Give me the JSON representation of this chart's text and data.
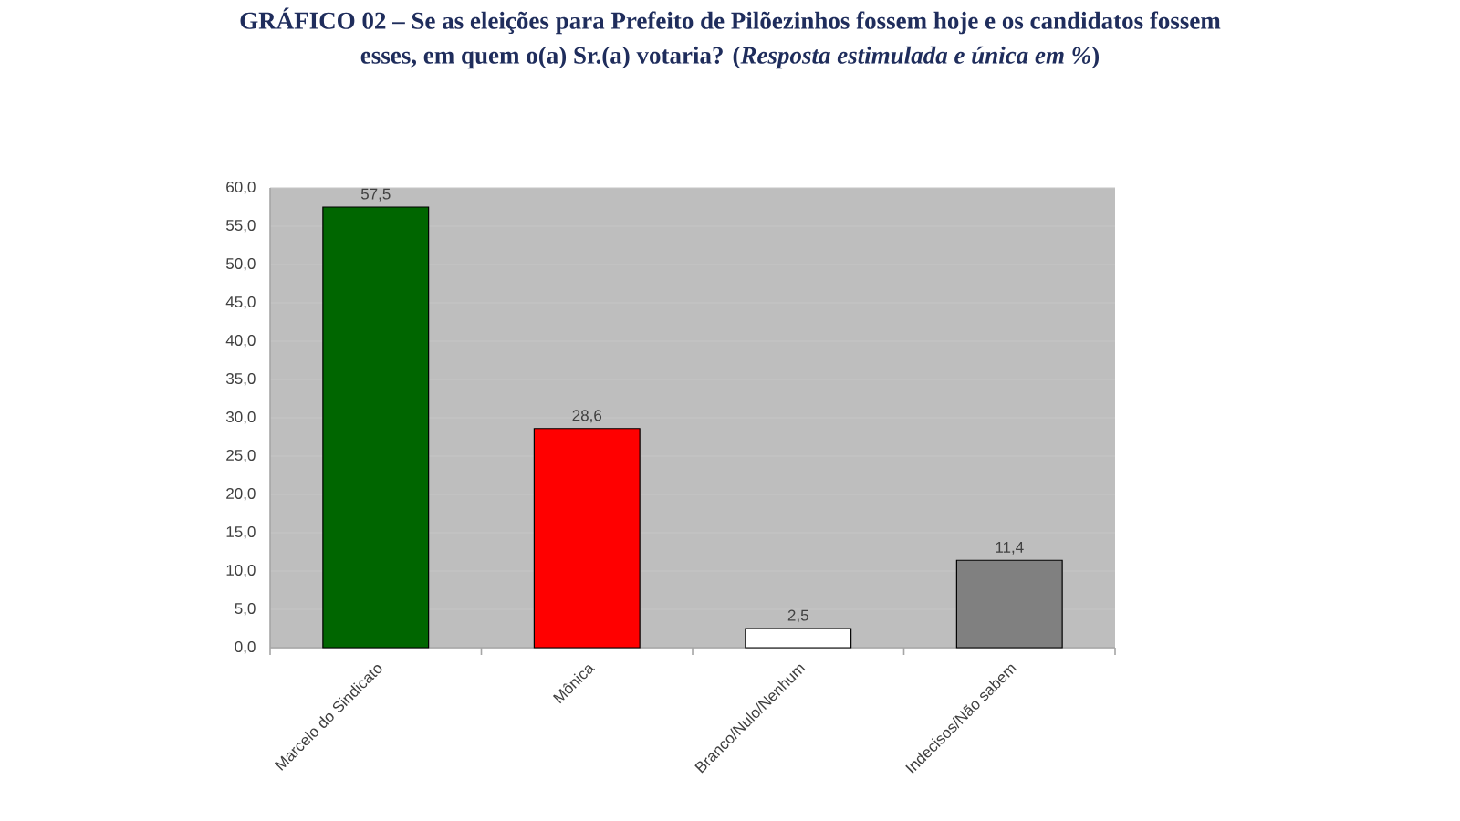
{
  "chart_data": {
    "type": "bar",
    "title": "GRÁFICO 02 – Se as eleições para Prefeito de Pilõezinhos fossem hoje e os candidatos fossem esses, em quem o(a) Sr.(a) votaria? (*Resposta estimulada e única em %*)",
    "categories": [
      "Marcelo do Sindicato",
      "Mônica",
      "Branco/Nulo/Nenhum",
      "Indecisos/Não sabem"
    ],
    "values": [
      57.5,
      28.6,
      2.5,
      11.4
    ],
    "colors": [
      "#006600",
      "#ff0000",
      "#ffffff",
      "#808080"
    ],
    "value_labels": [
      "57,5",
      "28,6",
      "2,5",
      "11,4"
    ],
    "ylim": [
      0,
      60
    ],
    "yticks": [
      {
        "value": 0,
        "label": "0,0"
      },
      {
        "value": 5,
        "label": "5,0"
      },
      {
        "value": 10,
        "label": "10,0"
      },
      {
        "value": 15,
        "label": "15,0"
      },
      {
        "value": 20,
        "label": "20,0"
      },
      {
        "value": 25,
        "label": "25,0"
      },
      {
        "value": 30,
        "label": "30,0"
      },
      {
        "value": 35,
        "label": "35,0"
      },
      {
        "value": 40,
        "label": "40,0"
      },
      {
        "value": 45,
        "label": "45,0"
      },
      {
        "value": 50,
        "label": "50,0"
      },
      {
        "value": 55,
        "label": "55,0"
      },
      {
        "value": 60,
        "label": "60,0"
      }
    ],
    "grid": "y"
  }
}
